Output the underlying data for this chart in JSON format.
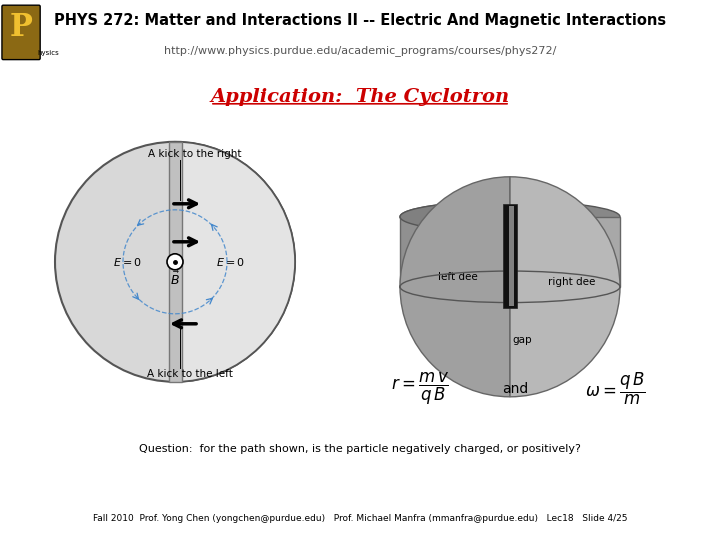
{
  "header_bg": "#c8d400",
  "footer_bg": "#a8dce8",
  "header_title": "PHYS 272: Matter and Interactions II -- Electric And Magnetic Interactions",
  "header_url": "http://www.physics.purdue.edu/academic_programs/courses/phys272/",
  "slide_title": "Application:  The Cyclotron",
  "slide_title_color": "#cc0000",
  "footer_text": "Fall 2010  Prof. Yong Chen (yongchen@purdue.edu)   Prof. Michael Manfra (mmanfra@purdue.edu)   Lec18   Slide 4/25",
  "bg_color": "#ffffff"
}
